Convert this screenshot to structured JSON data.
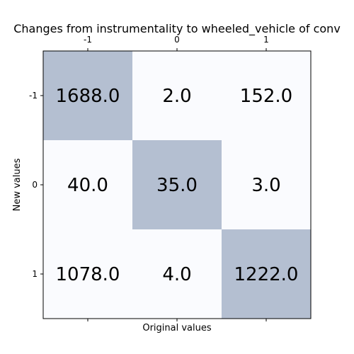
{
  "chart_data": {
    "type": "heatmap",
    "title": "Changes from instrumentality to wheeled_vehicle of conv",
    "xlabel": "Original values",
    "ylabel": "New values",
    "x_categories": [
      "-1",
      "0",
      "1"
    ],
    "y_categories": [
      "-1",
      "0",
      "1"
    ],
    "values": [
      [
        1688.0,
        2.0,
        152.0
      ],
      [
        40.0,
        35.0,
        3.0
      ],
      [
        1078.0,
        4.0,
        1222.0
      ]
    ],
    "cell_labels": [
      [
        "1688.0",
        "2.0",
        "152.0"
      ],
      [
        "40.0",
        "35.0",
        "3.0"
      ],
      [
        "1078.0",
        "4.0",
        "1222.0"
      ]
    ],
    "x_tick_position": "top",
    "colors": {
      "diagonal": "#b4bfd1",
      "off_diagonal": "#fafbfe"
    },
    "grid": false
  }
}
